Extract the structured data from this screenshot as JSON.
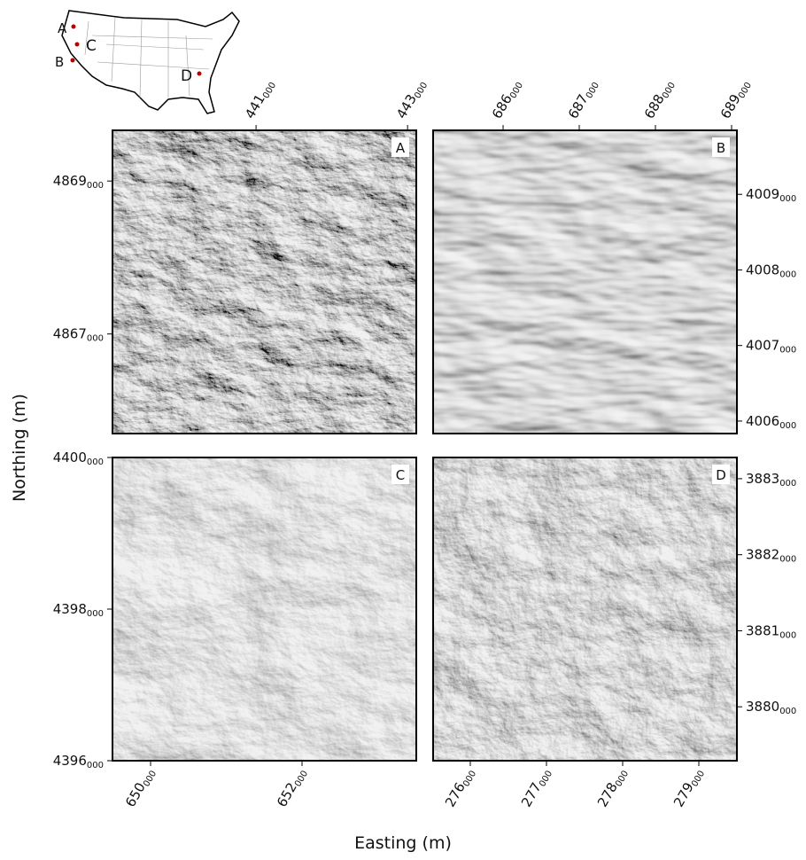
{
  "axis_labels": {
    "x": "Easting (m)",
    "y": "Northing (m)"
  },
  "panels": [
    {
      "label": "A",
      "xlim": [
        439105,
        443115
      ],
      "ylim": [
        4865698,
        4869663
      ],
      "xticks": [
        441000,
        443000
      ],
      "yticks": [
        4867000,
        4869000
      ]
    },
    {
      "label": "B",
      "xlim": [
        685081,
        689070
      ],
      "ylim": [
        4005835,
        4009847
      ],
      "xticks": [
        686000,
        687000,
        688000,
        689000
      ],
      "yticks": [
        4006000,
        4007000,
        4008000,
        4009000
      ]
    },
    {
      "label": "C",
      "xlim": [
        649497,
        653509
      ],
      "ylim": [
        4396000,
        4400000
      ],
      "xticks": [
        650000,
        652000
      ],
      "yticks": [
        4396000,
        4398000,
        4400000
      ]
    },
    {
      "label": "D",
      "xlim": [
        275512,
        279500
      ],
      "ylim": [
        3879291,
        3883279
      ],
      "xticks": [
        276000,
        277000,
        278000,
        279000
      ],
      "yticks": [
        3880000,
        3881000,
        3882000,
        3883000
      ]
    }
  ]
}
